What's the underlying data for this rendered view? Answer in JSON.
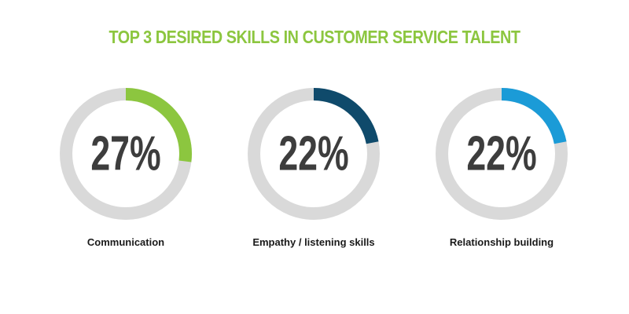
{
  "chart_data": {
    "type": "pie",
    "title": "TOP 3 DESIRED SKILLS IN CUSTOMER SERVICE TALENT",
    "track_color": "#d9d9d9",
    "title_color": "#8cc63f",
    "items": [
      {
        "label": "Communication",
        "value": 27,
        "display": "27%",
        "color": "#8cc63f"
      },
      {
        "label": "Empathy / listening skills",
        "value": 22,
        "display": "22%",
        "color": "#0f4a6b"
      },
      {
        "label": "Relationship building",
        "value": 22,
        "display": "22%",
        "color": "#1b9bd7"
      }
    ]
  }
}
